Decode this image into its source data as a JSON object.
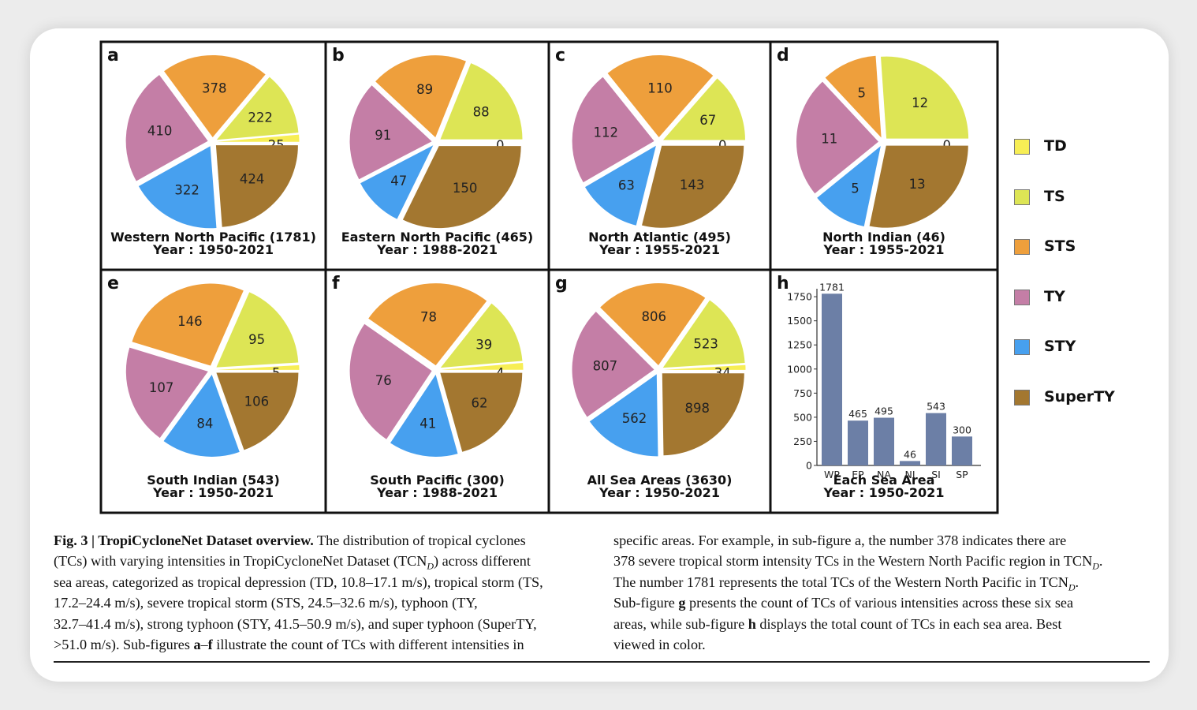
{
  "legend": [
    {
      "label": "TD",
      "color": "#F7EE55"
    },
    {
      "label": "TS",
      "color": "#DDE555"
    },
    {
      "label": "STS",
      "color": "#EE9F3C"
    },
    {
      "label": "TY",
      "color": "#C47EA6"
    },
    {
      "label": "STY",
      "color": "#47A0EF"
    },
    {
      "label": "SuperTY",
      "color": "#A37730"
    }
  ],
  "chart_data": [
    {
      "panel": "a",
      "type": "pie",
      "title": "Western North Pacific (1781)",
      "subtitle": "Year : 1950-2021",
      "categories": [
        "TD",
        "TS",
        "STS",
        "TY",
        "STY",
        "SuperTY"
      ],
      "values": [
        25,
        222,
        378,
        410,
        322,
        424
      ]
    },
    {
      "panel": "b",
      "type": "pie",
      "title": "Eastern North Pacific (465)",
      "subtitle": "Year : 1988-2021",
      "categories": [
        "TD",
        "TS",
        "STS",
        "TY",
        "STY",
        "SuperTY"
      ],
      "values": [
        0,
        88,
        89,
        91,
        47,
        150
      ]
    },
    {
      "panel": "c",
      "type": "pie",
      "title": "North Atlantic (495)",
      "subtitle": "Year : 1955-2021",
      "categories": [
        "TD",
        "TS",
        "STS",
        "TY",
        "STY",
        "SuperTY"
      ],
      "values": [
        0,
        67,
        110,
        112,
        63,
        143
      ]
    },
    {
      "panel": "d",
      "type": "pie",
      "title": "North Indian (46)",
      "subtitle": "Year : 1955-2021",
      "categories": [
        "TD",
        "TS",
        "STS",
        "TY",
        "STY",
        "SuperTY"
      ],
      "values": [
        0,
        12,
        5,
        11,
        5,
        13
      ]
    },
    {
      "panel": "e",
      "type": "pie",
      "title": "South Indian (543)",
      "subtitle": "Year : 1950-2021",
      "categories": [
        "TD",
        "TS",
        "STS",
        "TY",
        "STY",
        "SuperTY"
      ],
      "values": [
        5,
        95,
        146,
        107,
        84,
        106
      ]
    },
    {
      "panel": "f",
      "type": "pie",
      "title": "South Pacific (300)",
      "subtitle": "Year : 1988-2021",
      "categories": [
        "TD",
        "TS",
        "STS",
        "TY",
        "STY",
        "SuperTY"
      ],
      "values": [
        4,
        39,
        78,
        76,
        41,
        62
      ]
    },
    {
      "panel": "g",
      "type": "pie",
      "title": "All Sea Areas (3630)",
      "subtitle": "Year : 1950-2021",
      "categories": [
        "TD",
        "TS",
        "STS",
        "TY",
        "STY",
        "SuperTY"
      ],
      "values": [
        34,
        523,
        806,
        807,
        562,
        898
      ]
    },
    {
      "panel": "h",
      "type": "bar",
      "title": "Each Sea Area",
      "subtitle": "Year : 1950-2021",
      "categories": [
        "WP",
        "EP",
        "NA",
        "NI",
        "SI",
        "SP"
      ],
      "values": [
        1781,
        465,
        495,
        46,
        543,
        300
      ],
      "ylim": [
        0,
        1800
      ],
      "yticks": [
        0,
        250,
        500,
        750,
        1000,
        1250,
        1500,
        1750
      ],
      "bar_color": "#6C7FA6"
    }
  ],
  "caption": {
    "left_lines": [
      [
        {
          "t": "Fig. 3 | TropiCycloneNet Dataset overview.",
          "b": true
        },
        {
          "t": " The distribution of tropical cyclones"
        }
      ],
      [
        {
          "t": "(TCs) with varying intensities in TropiCycloneNet Dataset (TCN"
        },
        {
          "t": "D",
          "sub": true
        },
        {
          "t": ") across different"
        }
      ],
      [
        {
          "t": "sea areas, categorized as tropical depression (TD, 10.8–17.1 m/s), tropical storm (TS,"
        }
      ],
      [
        {
          "t": "17.2–24.4 m/s), severe tropical storm (STS, 24.5–32.6 m/s), typhoon (TY,"
        }
      ],
      [
        {
          "t": "32.7–41.4 m/s), strong typhoon (STY, 41.5–50.9 m/s), and super typhoon (SuperTY,"
        }
      ],
      [
        {
          "t": ">51.0 m/s). Sub-figures "
        },
        {
          "t": "a",
          "b": true
        },
        {
          "t": "–"
        },
        {
          "t": "f",
          "b": true
        },
        {
          "t": " illustrate the count of TCs with different intensities in"
        }
      ]
    ],
    "right_lines": [
      [
        {
          "t": "specific areas. For example, in sub-figure a, the number 378 indicates there are"
        }
      ],
      [
        {
          "t": "378 severe tropical storm intensity TCs in the Western North Pacific region in TCN"
        },
        {
          "t": "D",
          "sub": true
        },
        {
          "t": "."
        }
      ],
      [
        {
          "t": "The number 1781 represents the total TCs of the Western North Pacific in TCN"
        },
        {
          "t": "D",
          "sub": true
        },
        {
          "t": "."
        }
      ],
      [
        {
          "t": "Sub-figure "
        },
        {
          "t": "g",
          "b": true
        },
        {
          "t": " presents the count of TCs of various intensities across these six sea"
        }
      ],
      [
        {
          "t": "areas, while sub-figure "
        },
        {
          "t": "h",
          "b": true
        },
        {
          "t": " displays the total count of TCs in each sea area. Best"
        }
      ],
      [
        {
          "t": "viewed in color."
        }
      ]
    ]
  }
}
